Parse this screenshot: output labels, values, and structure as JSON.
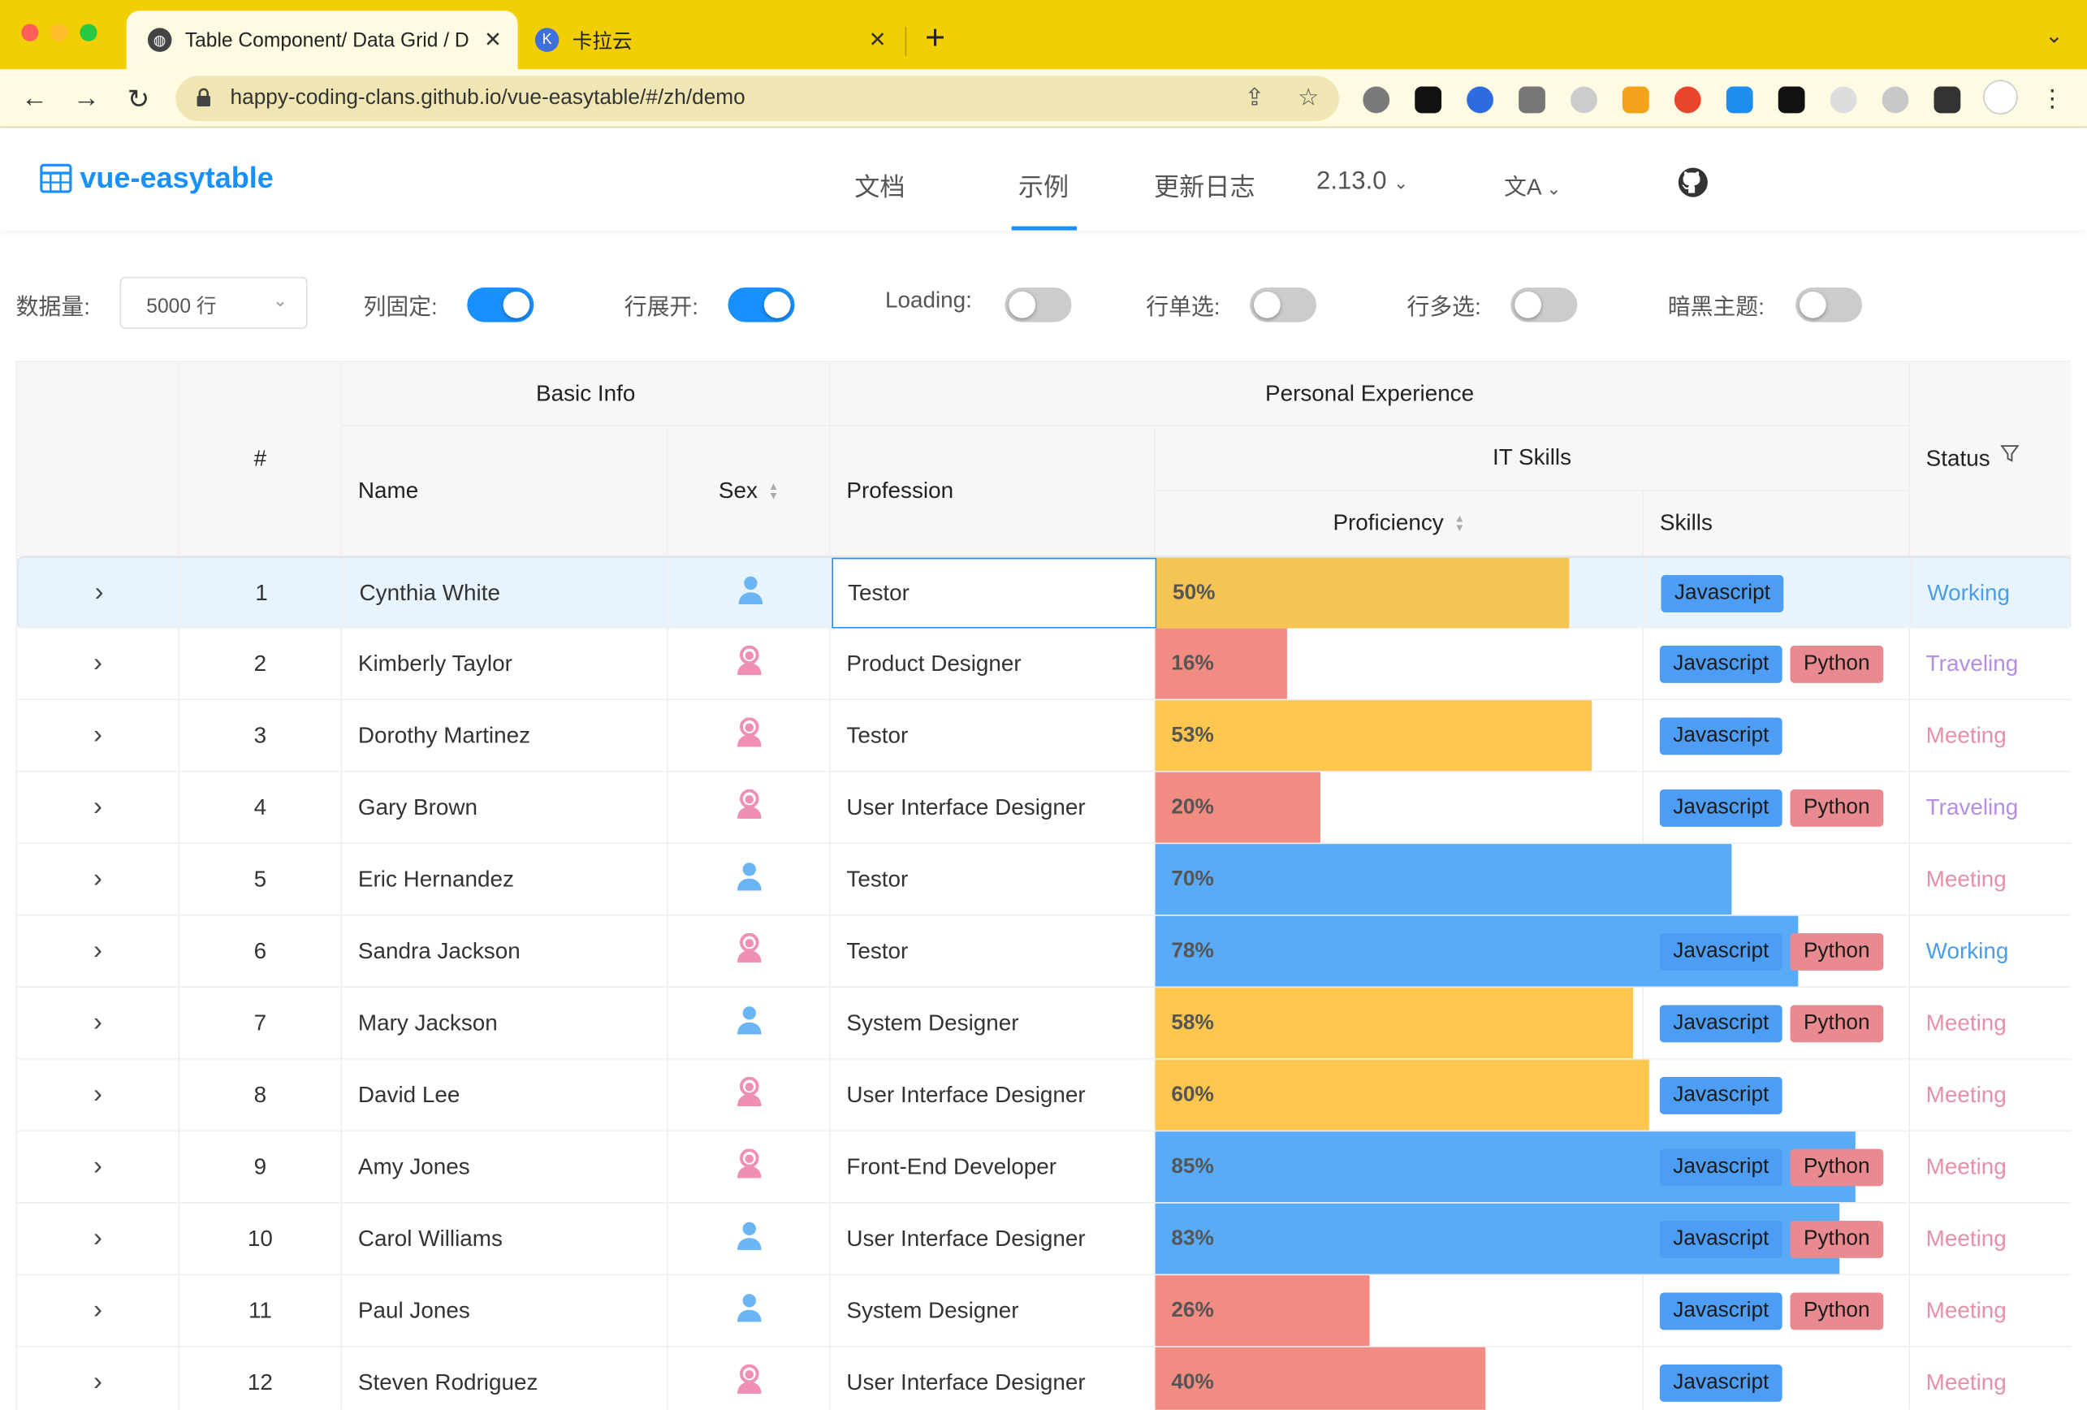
{
  "browser": {
    "tabs": [
      {
        "title": "Table Component/ Data Grid / D",
        "active": true
      },
      {
        "title": "卡拉云",
        "active": false
      }
    ],
    "url": "happy-coding-clans.github.io/vue-easytable/#/zh/demo"
  },
  "site": {
    "logo": "vue-easytable",
    "nav": [
      "文档",
      "示例",
      "更新日志"
    ],
    "active_nav": "示例",
    "version": "2.13.0",
    "lang_icon": "translate-icon"
  },
  "controls": {
    "data_count_label": "数据量:",
    "data_count_value": "5000 行",
    "fixed_col_label": "列固定:",
    "fixed_col_on": true,
    "row_expand_label": "行展开:",
    "row_expand_on": true,
    "loading_label": "Loading:",
    "loading_on": false,
    "single_select_label": "行单选:",
    "single_select_on": false,
    "multi_select_label": "行多选:",
    "multi_select_on": false,
    "dark_label": "暗黑主题:",
    "dark_on": false
  },
  "table": {
    "headers": {
      "basic_info": "Basic Info",
      "personal_experience": "Personal Experience",
      "index": "#",
      "name": "Name",
      "sex": "Sex",
      "profession": "Profession",
      "it_skills": "IT Skills",
      "proficiency": "Proficiency",
      "skills": "Skills",
      "status": "Status"
    },
    "rows": [
      {
        "idx": "1",
        "name": "Cynthia White",
        "sex": "male",
        "profession": "Testor",
        "proficiency": 50,
        "proficiency_text": "50%",
        "skills": [
          "Javascript"
        ],
        "status": "Working"
      },
      {
        "idx": "2",
        "name": "Kimberly Taylor",
        "sex": "female",
        "profession": "Product Designer",
        "proficiency": 16,
        "proficiency_text": "16%",
        "skills": [
          "Javascript",
          "Python"
        ],
        "status": "Traveling"
      },
      {
        "idx": "3",
        "name": "Dorothy Martinez",
        "sex": "female",
        "profession": "Testor",
        "proficiency": 53,
        "proficiency_text": "53%",
        "skills": [
          "Javascript"
        ],
        "status": "Meeting"
      },
      {
        "idx": "4",
        "name": "Gary Brown",
        "sex": "female",
        "profession": "User Interface Designer",
        "proficiency": 20,
        "proficiency_text": "20%",
        "skills": [
          "Javascript",
          "Python"
        ],
        "status": "Traveling"
      },
      {
        "idx": "5",
        "name": "Eric Hernandez",
        "sex": "male",
        "profession": "Testor",
        "proficiency": 70,
        "proficiency_text": "70%",
        "skills": [],
        "status": "Meeting"
      },
      {
        "idx": "6",
        "name": "Sandra Jackson",
        "sex": "female",
        "profession": "Testor",
        "proficiency": 78,
        "proficiency_text": "78%",
        "skills": [
          "Javascript",
          "Python"
        ],
        "status": "Working"
      },
      {
        "idx": "7",
        "name": "Mary Jackson",
        "sex": "male",
        "profession": "System Designer",
        "proficiency": 58,
        "proficiency_text": "58%",
        "skills": [
          "Javascript",
          "Python"
        ],
        "status": "Meeting"
      },
      {
        "idx": "8",
        "name": "David Lee",
        "sex": "female",
        "profession": "User Interface Designer",
        "proficiency": 60,
        "proficiency_text": "60%",
        "skills": [
          "Javascript"
        ],
        "status": "Meeting"
      },
      {
        "idx": "9",
        "name": "Amy Jones",
        "sex": "female",
        "profession": "Front-End Developer",
        "proficiency": 85,
        "proficiency_text": "85%",
        "skills": [
          "Javascript",
          "Python"
        ],
        "status": "Meeting"
      },
      {
        "idx": "10",
        "name": "Carol Williams",
        "sex": "male",
        "profession": "User Interface Designer",
        "proficiency": 83,
        "proficiency_text": "83%",
        "skills": [
          "Javascript",
          "Python"
        ],
        "status": "Meeting"
      },
      {
        "idx": "11",
        "name": "Paul Jones",
        "sex": "male",
        "profession": "System Designer",
        "proficiency": 26,
        "proficiency_text": "26%",
        "skills": [
          "Javascript",
          "Python"
        ],
        "status": "Meeting"
      },
      {
        "idx": "12",
        "name": "Steven Rodriguez",
        "sex": "female",
        "profession": "User Interface Designer",
        "proficiency": 40,
        "proficiency_text": "40%",
        "skills": [
          "Javascript"
        ],
        "status": "Meeting"
      }
    ],
    "selected_row": 0
  },
  "colors": {
    "accent": "#1890ff",
    "bar_low": "#f28b82",
    "bar_mid": "#fdc64e",
    "bar_high": "#5aabf7",
    "status_working": "#4a9de8",
    "status_traveling": "#b48ee0",
    "status_meeting": "#e690a8",
    "male_icon": "#6bb5f5",
    "female_icon": "#f08fb6"
  }
}
